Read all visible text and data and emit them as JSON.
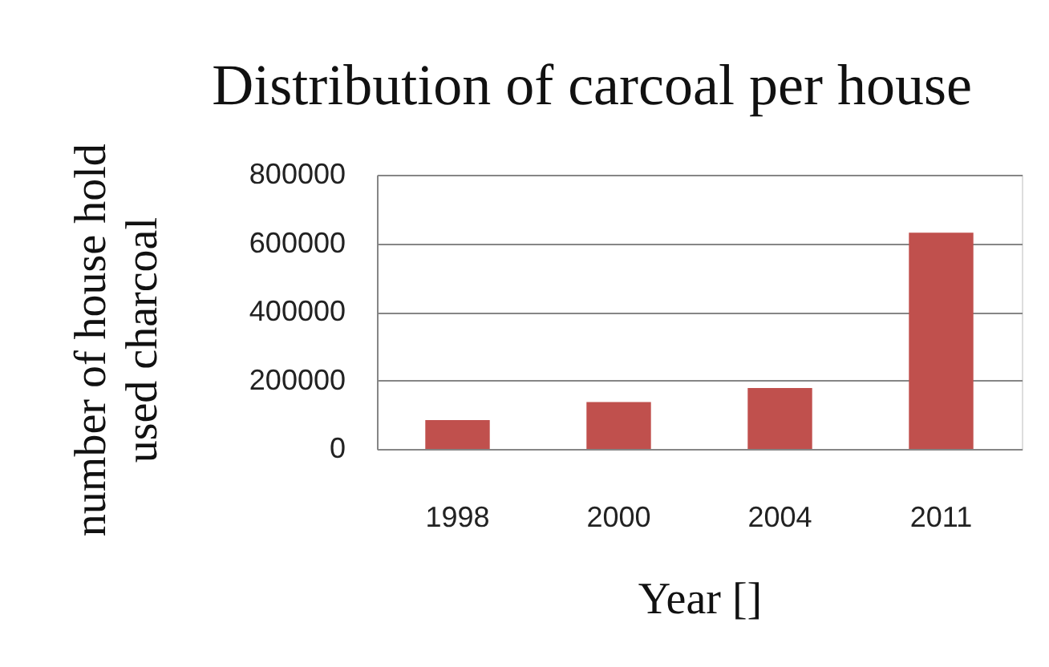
{
  "chart_data": {
    "type": "bar",
    "title": "Distribution of carcoal per house",
    "xlabel": "Year []",
    "ylabel": "number of house hold\nused charcoal",
    "categories": [
      "1998",
      "2000",
      "2004",
      "2011"
    ],
    "values": [
      84000,
      137000,
      178000,
      631000
    ],
    "color": "#c0504d",
    "ylim": [
      0,
      800000
    ],
    "yticks": [
      0,
      200000,
      400000,
      600000,
      800000
    ],
    "grid": "y"
  }
}
